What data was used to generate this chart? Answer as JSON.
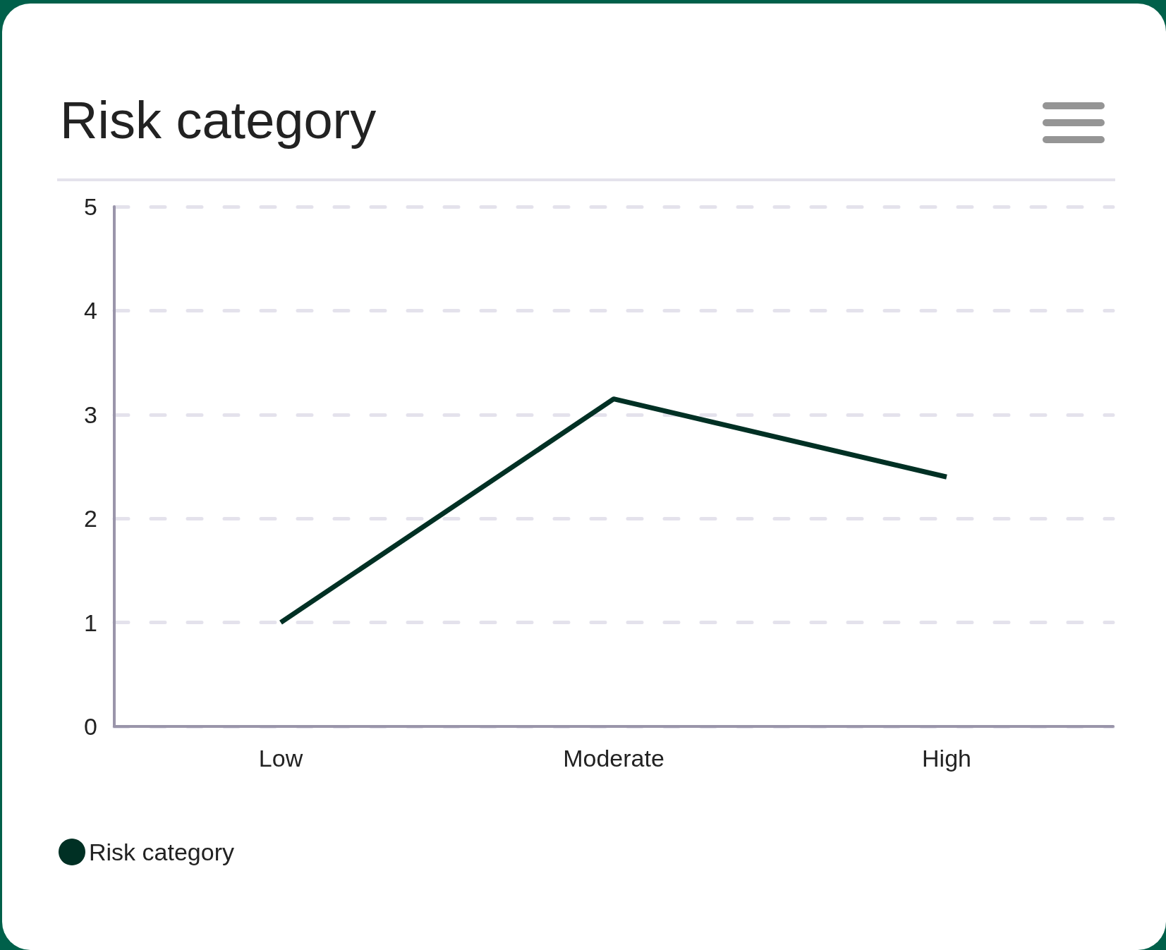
{
  "chart_data": {
    "type": "line",
    "title": "Risk category",
    "categories": [
      "Low",
      "Moderate",
      "High"
    ],
    "series": [
      {
        "name": "Risk category",
        "color": "#003024",
        "values": [
          1,
          3.15,
          2.4
        ]
      }
    ],
    "ylim": [
      0,
      5
    ],
    "yticks": [
      0,
      1,
      2,
      3,
      4,
      5
    ],
    "grid": "y",
    "legend": "bottom left",
    "marker": "none",
    "line_style": "solid"
  }
}
